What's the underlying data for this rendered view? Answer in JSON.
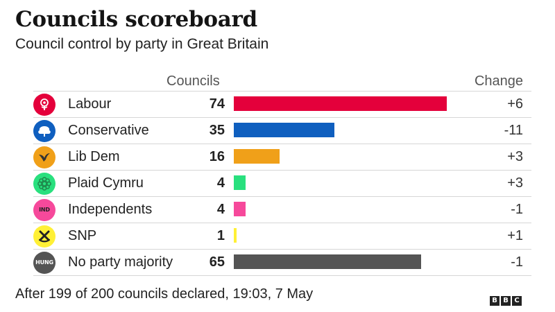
{
  "header": {
    "title": "Councils scoreboard",
    "subtitle": "Council control by party in Great Britain"
  },
  "columns": {
    "councils": "Councils",
    "change": "Change"
  },
  "chart_data": {
    "type": "bar",
    "orientation": "horizontal",
    "title": "Councils scoreboard",
    "subtitle": "Council control by party in Great Britain",
    "categories": [
      "Labour",
      "Conservative",
      "Lib Dem",
      "Plaid Cymru",
      "Independents",
      "SNP",
      "No party majority"
    ],
    "values": [
      74,
      35,
      16,
      4,
      4,
      1,
      65
    ],
    "xlim": [
      0,
      74
    ],
    "grid": false,
    "legend": "none",
    "rows": [
      {
        "party": "Labour",
        "councils": 74,
        "change": "+6",
        "color": "#e4003b",
        "logo": "labour-rose-icon",
        "logo_label": ""
      },
      {
        "party": "Conservative",
        "councils": 35,
        "change": "-11",
        "color": "#0f5fbf",
        "logo": "conservative-tree-icon",
        "logo_label": ""
      },
      {
        "party": "Lib Dem",
        "councils": 16,
        "change": "+3",
        "color": "#f0a019",
        "logo": "libdem-bird-icon",
        "logo_label": ""
      },
      {
        "party": "Plaid Cymru",
        "councils": 4,
        "change": "+3",
        "color": "#29e07e",
        "logo": "plaid-poppy-icon",
        "logo_label": ""
      },
      {
        "party": "Independents",
        "councils": 4,
        "change": "-1",
        "color": "#f6499b",
        "logo": "independents-badge-icon",
        "logo_label": "IND"
      },
      {
        "party": "SNP",
        "councils": 1,
        "change": "+1",
        "color": "#fff036",
        "logo": "snp-emblem-icon",
        "logo_label": ""
      },
      {
        "party": "No party majority",
        "councils": 65,
        "change": "-1",
        "color": "#545454",
        "logo": "hung-badge-icon",
        "logo_label": "HUNG"
      }
    ]
  },
  "footnote": "After 199 of 200 councils declared, 19:03, 7 May",
  "brand": {
    "letters": [
      "B",
      "B",
      "C"
    ],
    "icon": "bbc-logo-icon"
  }
}
